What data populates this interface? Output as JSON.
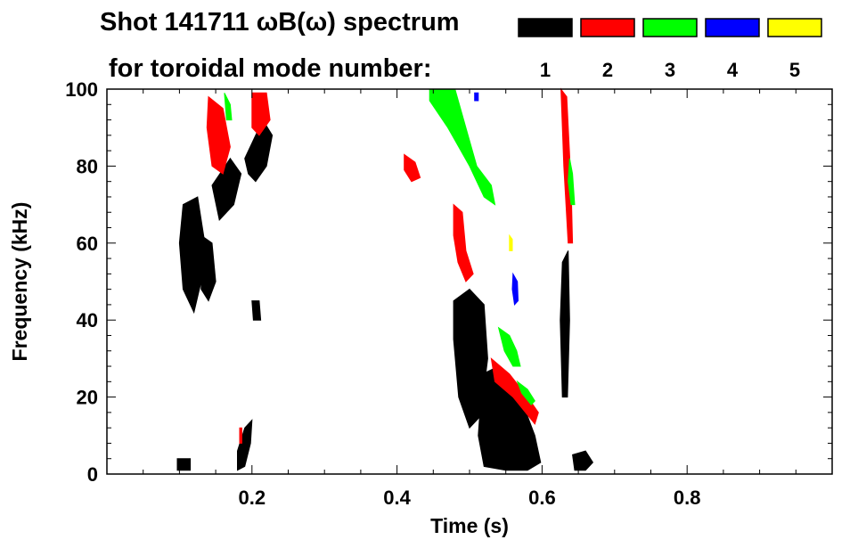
{
  "chart_data": {
    "type": "heatmap",
    "title_line1": "Shot 141711 ωB(ω) spectrum",
    "title_line2": "for toroidal mode number:",
    "xlabel": "Time (s)",
    "ylabel": "Frequency (kHz)",
    "xlim": [
      0.0,
      1.0
    ],
    "ylim": [
      0,
      100
    ],
    "x_ticks": [
      0.2,
      0.4,
      0.6,
      0.8
    ],
    "x_tick_labels": [
      "0.2",
      "0.4",
      "0.6",
      "0.8"
    ],
    "y_ticks": [
      0,
      20,
      40,
      60,
      80,
      100
    ],
    "y_tick_labels": [
      "0",
      "20",
      "40",
      "60",
      "80",
      "100"
    ],
    "legend_placement": "top-right",
    "series": [
      {
        "name": "1",
        "color": "#000000"
      },
      {
        "name": "2",
        "color": "#ff0000"
      },
      {
        "name": "3",
        "color": "#00ff00"
      },
      {
        "name": "4",
        "color": "#0000ff"
      },
      {
        "name": "5",
        "color": "#ffff00"
      }
    ],
    "regions": [
      {
        "mode": "1",
        "points": [
          [
            0.105,
            70
          ],
          [
            0.125,
            72
          ],
          [
            0.135,
            60
          ],
          [
            0.13,
            50
          ],
          [
            0.12,
            42
          ],
          [
            0.105,
            48
          ],
          [
            0.1,
            60
          ]
        ]
      },
      {
        "mode": "1",
        "points": [
          [
            0.13,
            62
          ],
          [
            0.145,
            60
          ],
          [
            0.15,
            50
          ],
          [
            0.14,
            45
          ],
          [
            0.13,
            48
          ]
        ]
      },
      {
        "mode": "1",
        "points": [
          [
            0.145,
            75
          ],
          [
            0.17,
            82
          ],
          [
            0.185,
            78
          ],
          [
            0.175,
            70
          ],
          [
            0.155,
            66
          ]
        ]
      },
      {
        "mode": "1",
        "points": [
          [
            0.19,
            82
          ],
          [
            0.215,
            92
          ],
          [
            0.228,
            88
          ],
          [
            0.22,
            80
          ],
          [
            0.205,
            76
          ],
          [
            0.195,
            78
          ]
        ]
      },
      {
        "mode": "1",
        "points": [
          [
            0.2,
            45
          ],
          [
            0.21,
            45
          ],
          [
            0.212,
            40
          ],
          [
            0.202,
            40
          ]
        ]
      },
      {
        "mode": "1",
        "points": [
          [
            0.097,
            4
          ],
          [
            0.115,
            4
          ],
          [
            0.115,
            1
          ],
          [
            0.097,
            1
          ]
        ]
      },
      {
        "mode": "1",
        "points": [
          [
            0.18,
            6
          ],
          [
            0.19,
            12
          ],
          [
            0.2,
            14
          ],
          [
            0.198,
            8
          ],
          [
            0.19,
            2
          ],
          [
            0.18,
            1
          ]
        ]
      },
      {
        "mode": "1",
        "points": [
          [
            0.478,
            45
          ],
          [
            0.5,
            48
          ],
          [
            0.52,
            44
          ],
          [
            0.525,
            30
          ],
          [
            0.515,
            15
          ],
          [
            0.5,
            12
          ],
          [
            0.485,
            20
          ],
          [
            0.478,
            35
          ]
        ]
      },
      {
        "mode": "1",
        "points": [
          [
            0.518,
            26
          ],
          [
            0.54,
            28
          ],
          [
            0.57,
            20
          ],
          [
            0.59,
            10
          ],
          [
            0.598,
            3
          ],
          [
            0.58,
            1
          ],
          [
            0.55,
            1
          ],
          [
            0.52,
            2
          ],
          [
            0.512,
            10
          ]
        ]
      },
      {
        "mode": "1",
        "points": [
          [
            0.628,
            55
          ],
          [
            0.636,
            58
          ],
          [
            0.638,
            40
          ],
          [
            0.635,
            20
          ],
          [
            0.628,
            20
          ],
          [
            0.625,
            40
          ]
        ]
      },
      {
        "mode": "1",
        "points": [
          [
            0.642,
            5
          ],
          [
            0.66,
            6
          ],
          [
            0.67,
            3
          ],
          [
            0.66,
            1
          ],
          [
            0.645,
            1
          ]
        ]
      },
      {
        "mode": "2",
        "points": [
          [
            0.14,
            98
          ],
          [
            0.16,
            95
          ],
          [
            0.17,
            85
          ],
          [
            0.16,
            78
          ],
          [
            0.145,
            80
          ],
          [
            0.138,
            90
          ]
        ]
      },
      {
        "mode": "2",
        "points": [
          [
            0.2,
            99
          ],
          [
            0.22,
            99
          ],
          [
            0.225,
            92
          ],
          [
            0.21,
            88
          ],
          [
            0.2,
            90
          ]
        ]
      },
      {
        "mode": "2",
        "points": [
          [
            0.41,
            83
          ],
          [
            0.425,
            81
          ],
          [
            0.432,
            77
          ],
          [
            0.42,
            76
          ],
          [
            0.41,
            79
          ]
        ]
      },
      {
        "mode": "2",
        "points": [
          [
            0.478,
            70
          ],
          [
            0.49,
            68
          ],
          [
            0.495,
            58
          ],
          [
            0.505,
            52
          ],
          [
            0.495,
            50
          ],
          [
            0.484,
            55
          ],
          [
            0.478,
            62
          ]
        ]
      },
      {
        "mode": "2",
        "points": [
          [
            0.53,
            30
          ],
          [
            0.555,
            26
          ],
          [
            0.58,
            20
          ],
          [
            0.595,
            16
          ],
          [
            0.59,
            13
          ],
          [
            0.56,
            20
          ],
          [
            0.535,
            24
          ]
        ]
      },
      {
        "mode": "2",
        "points": [
          [
            0.626,
            100
          ],
          [
            0.634,
            98
          ],
          [
            0.64,
            75
          ],
          [
            0.642,
            60
          ],
          [
            0.636,
            60
          ],
          [
            0.63,
            80
          ]
        ]
      },
      {
        "mode": "2",
        "points": [
          [
            0.183,
            12
          ],
          [
            0.186,
            12
          ],
          [
            0.186,
            8
          ],
          [
            0.183,
            8
          ]
        ]
      },
      {
        "mode": "3",
        "points": [
          [
            0.445,
            100
          ],
          [
            0.48,
            100
          ],
          [
            0.495,
            90
          ],
          [
            0.51,
            80
          ],
          [
            0.53,
            75
          ],
          [
            0.535,
            70
          ],
          [
            0.52,
            72
          ],
          [
            0.5,
            80
          ],
          [
            0.47,
            90
          ],
          [
            0.445,
            97
          ]
        ]
      },
      {
        "mode": "3",
        "points": [
          [
            0.54,
            38
          ],
          [
            0.555,
            36
          ],
          [
            0.565,
            32
          ],
          [
            0.57,
            28
          ],
          [
            0.56,
            28
          ],
          [
            0.548,
            32
          ]
        ]
      },
      {
        "mode": "3",
        "points": [
          [
            0.566,
            24
          ],
          [
            0.58,
            22
          ],
          [
            0.59,
            19
          ],
          [
            0.585,
            18
          ],
          [
            0.572,
            21
          ]
        ]
      },
      {
        "mode": "3",
        "points": [
          [
            0.638,
            82
          ],
          [
            0.642,
            78
          ],
          [
            0.645,
            70
          ],
          [
            0.64,
            70
          ],
          [
            0.636,
            76
          ]
        ]
      },
      {
        "mode": "3",
        "points": [
          [
            0.162,
            99
          ],
          [
            0.17,
            96
          ],
          [
            0.172,
            92
          ],
          [
            0.165,
            92
          ]
        ]
      },
      {
        "mode": "4",
        "points": [
          [
            0.56,
            52
          ],
          [
            0.566,
            50
          ],
          [
            0.567,
            45
          ],
          [
            0.562,
            44
          ],
          [
            0.559,
            48
          ]
        ]
      },
      {
        "mode": "4",
        "points": [
          [
            0.507,
            99
          ],
          [
            0.512,
            99
          ],
          [
            0.512,
            97
          ],
          [
            0.507,
            97
          ]
        ]
      },
      {
        "mode": "5",
        "points": [
          [
            0.555,
            62
          ],
          [
            0.559,
            61
          ],
          [
            0.559,
            58
          ],
          [
            0.555,
            58
          ]
        ]
      }
    ]
  }
}
